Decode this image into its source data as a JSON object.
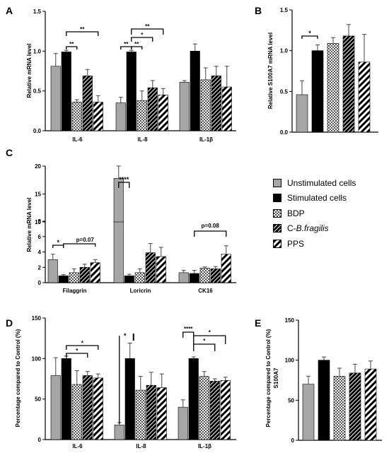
{
  "series_names": [
    "Unstimulated cells",
    "Stimulated cells",
    "BDP",
    "C-B.fragilis",
    "PPS"
  ],
  "legend_label_parts": [
    {
      "prefix": "Unstimulated cells",
      "italic": ""
    },
    {
      "prefix": "Stimulated cells",
      "italic": ""
    },
    {
      "prefix": "BDP",
      "italic": ""
    },
    {
      "prefix": "C-",
      "italic": "B.fragilis"
    },
    {
      "prefix": "PPS",
      "italic": ""
    }
  ],
  "chart_data": [
    {
      "panel": "A",
      "type": "bar",
      "ylabel": "Relative mRNA level",
      "ylim": [
        0,
        1.5
      ],
      "yticks": [
        "0.0",
        "0.5",
        "1.0",
        "1.5"
      ],
      "categories": [
        "IL-6",
        "IL-8",
        "IL-1β"
      ],
      "series": [
        {
          "values": [
            0.81,
            0.35,
            0.61
          ],
          "errors": [
            0.16,
            0.07,
            0.02
          ]
        },
        {
          "values": [
            0.99,
            0.99,
            1.0
          ],
          "errors": [
            0.02,
            0.02,
            0.09
          ]
        },
        {
          "values": [
            0.36,
            0.38,
            0.64
          ],
          "errors": [
            0.03,
            0.12,
            0.15
          ]
        },
        {
          "values": [
            0.69,
            0.54,
            0.69
          ],
          "errors": [
            0.08,
            0.09,
            0.12
          ]
        },
        {
          "values": [
            0.36,
            0.45,
            0.55
          ],
          "errors": [
            0.08,
            0.08,
            0.26
          ]
        }
      ],
      "annotations": [
        "**",
        "**",
        "**",
        "**",
        "*",
        "**"
      ]
    },
    {
      "panel": "B",
      "type": "bar",
      "ylabel": "Relative S100A7 mRNA level",
      "ylim": [
        0,
        1.5
      ],
      "yticks": [
        "0.0",
        "0.5",
        "1.0",
        "1.5"
      ],
      "categories": [
        ""
      ],
      "series": [
        {
          "values": [
            0.46
          ],
          "errors": [
            0.17
          ]
        },
        {
          "values": [
            1.0
          ],
          "errors": [
            0.07
          ]
        },
        {
          "values": [
            1.09
          ],
          "errors": [
            0.07
          ]
        },
        {
          "values": [
            1.18
          ],
          "errors": [
            0.14
          ]
        },
        {
          "values": [
            0.86
          ],
          "errors": [
            0.34
          ]
        }
      ],
      "annotations": [
        "*"
      ]
    },
    {
      "panel": "C",
      "type": "bar",
      "ylabel": "Relative mRNA level",
      "y_axis_broken": true,
      "ylim_lower": [
        0,
        8
      ],
      "ylim_upper": [
        10,
        20
      ],
      "yticks": [
        "0",
        "2",
        "4",
        "6",
        "8",
        "10",
        "15",
        "20"
      ],
      "categories": [
        "Filaggrin",
        "Loricrin",
        "CK16"
      ],
      "series": [
        {
          "values": [
            3.0,
            17.8,
            1.3
          ],
          "errors": [
            0.7,
            2.2,
            0.3
          ]
        },
        {
          "values": [
            0.9,
            0.9,
            1.2
          ],
          "errors": [
            0.15,
            0.2,
            0.4
          ]
        },
        {
          "values": [
            1.3,
            1.3,
            1.9
          ],
          "errors": [
            0.5,
            0.5,
            0.15
          ]
        },
        {
          "values": [
            2.0,
            3.9,
            1.8
          ],
          "errors": [
            0.4,
            1.2,
            0.3
          ]
        },
        {
          "values": [
            2.6,
            3.4,
            3.7
          ],
          "errors": [
            0.4,
            1.2,
            1.1
          ]
        }
      ],
      "annotations": [
        "*",
        "p=0.07",
        "****",
        "p=0.08"
      ]
    },
    {
      "panel": "D",
      "type": "bar",
      "ylabel": "Percentage compared to Control (%)",
      "ylim": [
        0,
        150
      ],
      "yticks": [
        "0",
        "50",
        "100",
        "150"
      ],
      "categories": [
        "IL-6",
        "IL-8",
        "IL-1β"
      ],
      "series": [
        {
          "values": [
            79,
            18,
            40
          ],
          "errors": [
            22,
            3,
            9
          ]
        },
        {
          "values": [
            100,
            100,
            100
          ],
          "errors": [
            3,
            19,
            2
          ]
        },
        {
          "values": [
            68,
            61,
            78
          ],
          "errors": [
            17,
            17,
            6
          ]
        },
        {
          "values": [
            79,
            67,
            72
          ],
          "errors": [
            5,
            16,
            3
          ]
        },
        {
          "values": [
            76,
            64,
            73
          ],
          "errors": [
            5,
            17,
            4
          ]
        }
      ],
      "annotations": [
        "*",
        "*",
        "*",
        "****",
        "*",
        "*"
      ]
    },
    {
      "panel": "E",
      "type": "bar",
      "ylabel": "Percentage compared to Control (%) S100A7",
      "ylim": [
        0,
        150
      ],
      "yticks": [
        "0",
        "50",
        "100",
        "150"
      ],
      "categories": [
        ""
      ],
      "series": [
        {
          "values": [
            70
          ],
          "errors": [
            10
          ]
        },
        {
          "values": [
            100
          ],
          "errors": [
            4
          ]
        },
        {
          "values": [
            80
          ],
          "errors": [
            10
          ]
        },
        {
          "values": [
            84
          ],
          "errors": [
            11
          ]
        },
        {
          "values": [
            89
          ],
          "errors": [
            10
          ]
        }
      ],
      "annotations": []
    }
  ]
}
